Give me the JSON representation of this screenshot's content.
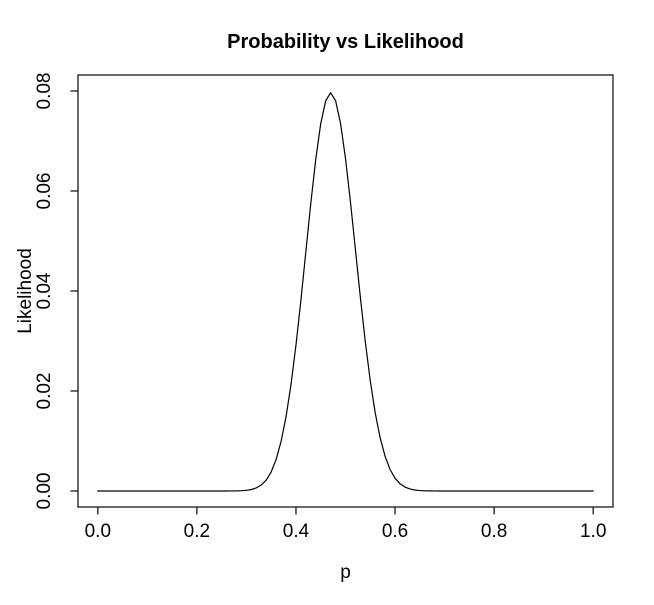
{
  "figure": {
    "background": "#ffffff",
    "text_color": "#000000",
    "line_color": "#000000"
  },
  "chart_data": {
    "type": "line",
    "title": "Probability vs Likelihood",
    "xlabel": "p",
    "ylabel": "Likelihood",
    "xlim": [
      0,
      1
    ],
    "ylim": [
      0,
      0.08
    ],
    "x_ticks": [
      0,
      0.2,
      0.4,
      0.6,
      0.8,
      1
    ],
    "x_tick_labels": [
      "0.0",
      "0.2",
      "0.4",
      "0.6",
      "0.8",
      "1.0"
    ],
    "y_ticks": [
      0,
      0.02,
      0.04,
      0.06,
      0.08
    ],
    "y_tick_labels": [
      "0.00",
      "0.02",
      "0.04",
      "0.06",
      "0.08"
    ],
    "grid": false,
    "legend_position": "none",
    "line_color": "#000000",
    "series": [
      {
        "name": "likelihood",
        "x": [
          0,
          0.01,
          0.02,
          0.03,
          0.04,
          0.05,
          0.06,
          0.07,
          0.08,
          0.09,
          0.1,
          0.11,
          0.12,
          0.13,
          0.14,
          0.15,
          0.16,
          0.17,
          0.18,
          0.19,
          0.2,
          0.21,
          0.22,
          0.23,
          0.24,
          0.25,
          0.26,
          0.27,
          0.28,
          0.29,
          0.3,
          0.31,
          0.32,
          0.33,
          0.34,
          0.35,
          0.36,
          0.37,
          0.38,
          0.39,
          0.4,
          0.41,
          0.42,
          0.43,
          0.44,
          0.45,
          0.46,
          0.47,
          0.48,
          0.49,
          0.5,
          0.51,
          0.52,
          0.53,
          0.54,
          0.55,
          0.56,
          0.57,
          0.58,
          0.59,
          0.6,
          0.61,
          0.62,
          0.63,
          0.64,
          0.65,
          0.66,
          0.67,
          0.68,
          0.69,
          0.7,
          0.71,
          0.72,
          0.73,
          0.74,
          0.75,
          0.76,
          0.77,
          0.78,
          0.79,
          0.8,
          0.81,
          0.82,
          0.83,
          0.84,
          0.85,
          0.86,
          0.87,
          0.88,
          0.89,
          0.9,
          0.91,
          0.92,
          0.93,
          0.94,
          0.95,
          0.96,
          0.97,
          0.98,
          0.99,
          1
        ],
        "y": [
          0,
          0,
          0,
          0,
          0,
          0,
          0,
          0,
          0,
          0,
          0,
          0,
          0,
          0,
          0,
          0,
          0,
          0,
          0,
          0,
          0,
          0,
          0,
          0,
          0,
          0,
          0,
          1e-05,
          2e-05,
          6e-05,
          0.00014,
          0.0003,
          0.00062,
          0.0012,
          0.00219,
          0.00382,
          0.00631,
          0.00992,
          0.01488,
          0.0213,
          0.02916,
          0.03819,
          0.0479,
          0.05759,
          0.0664,
          0.07348,
          0.07806,
          0.07965,
          0.07807,
          0.07351,
          0.06652,
          0.05783,
          0.0483,
          0.03873,
          0.02983,
          0.02204,
          0.01562,
          0.01061,
          0.00691,
          0.0043,
          0.00256,
          0.00146,
          0.00079,
          0.00041,
          0.0002,
          9e-05,
          4e-05,
          2e-05,
          1e-05,
          0,
          0,
          0,
          0,
          0,
          0,
          0,
          0,
          0,
          0,
          0,
          0,
          0,
          0,
          0,
          0,
          0,
          0,
          0,
          0,
          0,
          0,
          0,
          0,
          0,
          0,
          0,
          0,
          0,
          0,
          0,
          0
        ]
      }
    ]
  }
}
